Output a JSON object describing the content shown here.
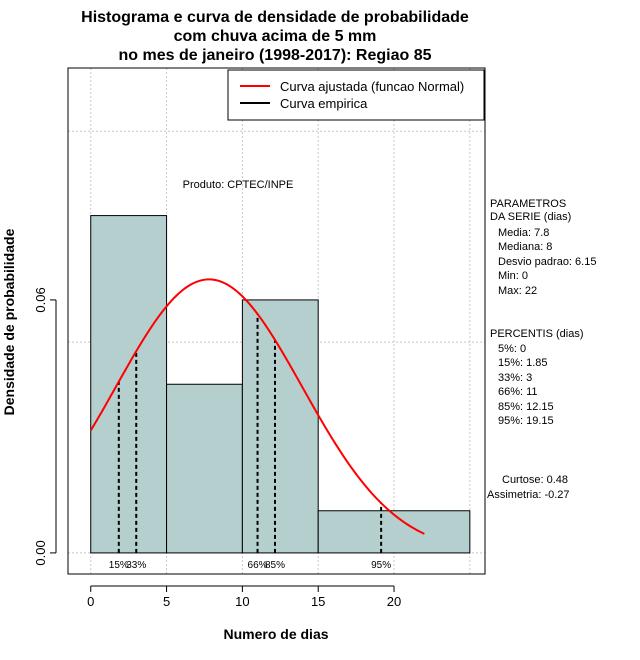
{
  "chart_data": {
    "type": "histogram",
    "title_lines": [
      "Histograma e curva de densidade de probabilidade",
      "com chuva acima de 5 mm",
      "no mes de janeiro (1998-2017): Regiao 85"
    ],
    "xlabel": "Numero de dias",
    "ylabel": "Densidade de probabilidade",
    "xlim": [
      -1.5,
      26
    ],
    "ylim": [
      -0.005,
      0.115
    ],
    "x_ticks": [
      0,
      5,
      10,
      15,
      20
    ],
    "x_tick_labels": [
      "0",
      "5",
      "10",
      "15",
      "20"
    ],
    "y_ticks": [
      0.0,
      0.06
    ],
    "y_tick_labels": [
      "0.00",
      "0.06"
    ],
    "grid_x": [
      0,
      5,
      10,
      15,
      20,
      25
    ],
    "grid_y": [
      0.0,
      0.05,
      0.1
    ],
    "bins": [
      {
        "start": 0,
        "end": 5,
        "density": 0.08
      },
      {
        "start": 5,
        "end": 10,
        "density": 0.04
      },
      {
        "start": 10,
        "end": 15,
        "density": 0.06
      },
      {
        "start": 15,
        "end": 25,
        "density": 0.01
      }
    ],
    "bar_color": "#b5cece",
    "normal_curve": {
      "mean": 7.8,
      "sd": 6.15,
      "x_from": 0,
      "x_to": 22,
      "color": "#ff0000"
    },
    "percentile_lines": [
      {
        "label": "15%",
        "x": 1.85
      },
      {
        "label": "33%",
        "x": 3
      },
      {
        "label": "66%",
        "x": 11
      },
      {
        "label": "85%",
        "x": 12.15
      },
      {
        "label": "95%",
        "x": 19.15
      }
    ],
    "annotation": "Produto: CPTEC/INPE",
    "legend": [
      {
        "label": "Curva ajustada (funcao Normal)",
        "color": "#ff0000"
      },
      {
        "label": "Curva empirica",
        "color": "#000000"
      }
    ],
    "side_panel": {
      "params_header": [
        "PARAMETROS",
        "DA SERIE (dias)"
      ],
      "params": [
        "Media: 7.8",
        "Mediana: 8",
        "Desvio padrao: 6.15",
        "Min: 0",
        "Max: 22"
      ],
      "percentis_header": "PERCENTIS (dias)",
      "percentis": [
        "5%: 0",
        "15%: 1.85",
        "33%: 3",
        "66%: 11",
        "85%: 12.15",
        "95%: 19.15"
      ],
      "stats": [
        "Curtose: 0.48",
        "Assimetria: -0.27"
      ]
    }
  }
}
